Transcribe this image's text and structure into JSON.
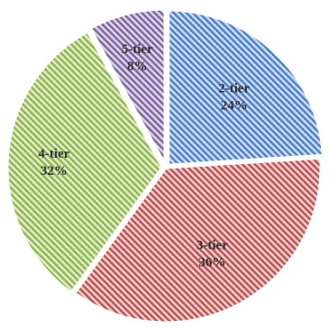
{
  "chart_data": {
    "type": "pie",
    "title": "",
    "slices": [
      {
        "label": "2-tier",
        "value": 24,
        "value_label": "24%",
        "color": "#4a7fd0"
      },
      {
        "label": "3-tier",
        "value": 36,
        "value_label": "36%",
        "color": "#c0504d"
      },
      {
        "label": "4-tier",
        "value": 32,
        "value_label": "32%",
        "color": "#8fb84a"
      },
      {
        "label": "5-tier",
        "value": 8,
        "value_label": "8%",
        "color": "#8064a2"
      }
    ],
    "start_angle_deg": 0,
    "direction": "clockwise",
    "fill_style": "diagonal-stripes",
    "legend": "none",
    "data_labels": "inside"
  }
}
